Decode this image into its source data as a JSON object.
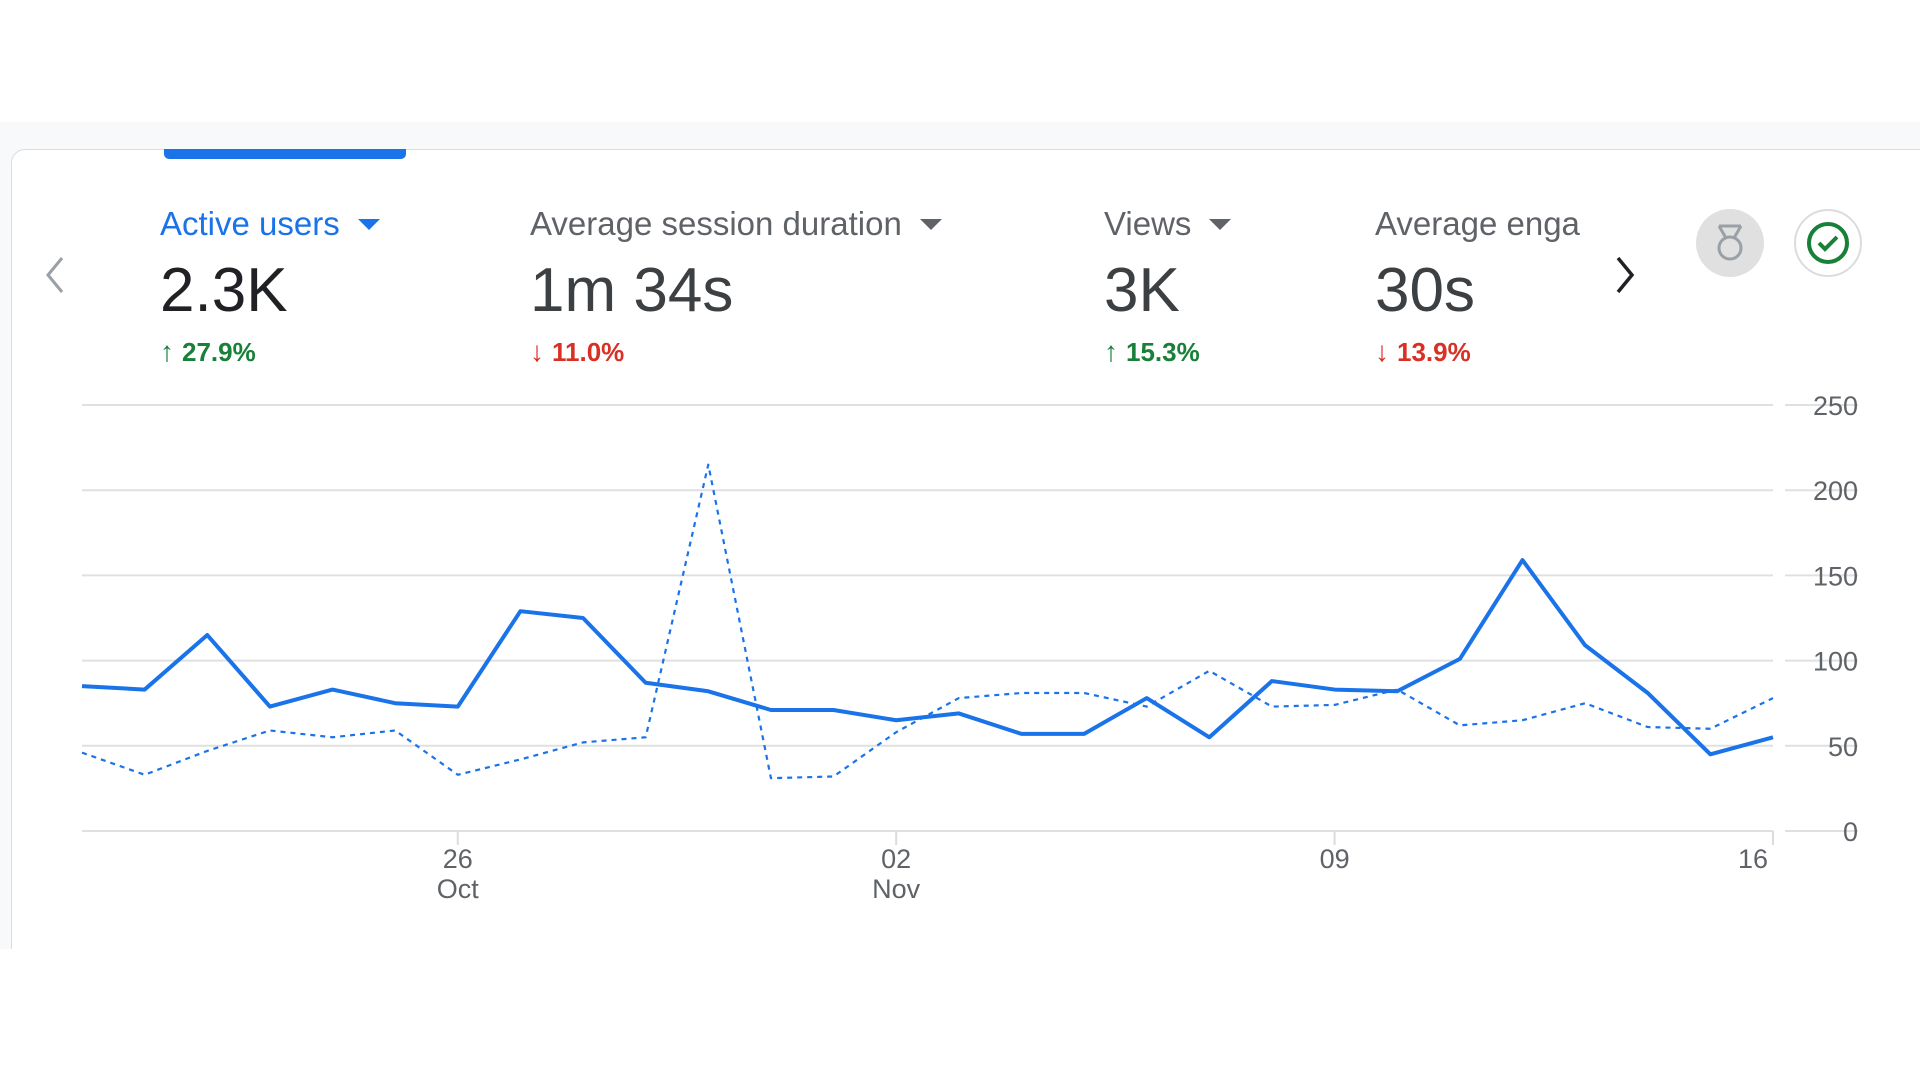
{
  "metrics": [
    {
      "label": "Active users",
      "value": "2.3K",
      "change": "27.9%",
      "direction": "up",
      "selected": true
    },
    {
      "label": "Average session duration",
      "value": "1m 34s",
      "change": "11.0%",
      "direction": "down",
      "selected": false
    },
    {
      "label": "Views",
      "value": "3K",
      "change": "15.3%",
      "direction": "up",
      "selected": false
    },
    {
      "label": "Average engagement time",
      "value": "30s",
      "change": "13.9%",
      "direction": "down",
      "selected": false
    }
  ],
  "chart_data": {
    "type": "line",
    "categories": [
      null,
      null,
      null,
      null,
      null,
      null,
      "26 Oct",
      null,
      null,
      null,
      null,
      null,
      null,
      "02 Nov",
      null,
      null,
      null,
      null,
      null,
      null,
      "09",
      null,
      null,
      null,
      null,
      null,
      null,
      "16"
    ],
    "series": [
      {
        "color": "#1a73e8",
        "dash": false,
        "values": [
          85,
          83,
          115,
          73,
          83,
          75,
          73,
          129,
          125,
          87,
          82,
          71,
          71,
          65,
          69,
          57,
          57,
          78,
          55,
          88,
          83,
          82,
          101,
          159,
          109,
          81,
          45,
          55
        ]
      },
      {
        "color": "#1a73e8",
        "dash": true,
        "values": [
          46,
          33,
          47,
          59,
          55,
          59,
          33,
          42,
          52,
          55,
          215,
          31,
          32,
          58,
          78,
          81,
          81,
          73,
          94,
          73,
          74,
          83,
          62,
          65,
          75,
          61,
          60,
          78
        ]
      }
    ],
    "ylim": [
      0,
      250
    ],
    "yticks": [
      0,
      50,
      100,
      150,
      200,
      250
    ],
    "grid": true
  }
}
